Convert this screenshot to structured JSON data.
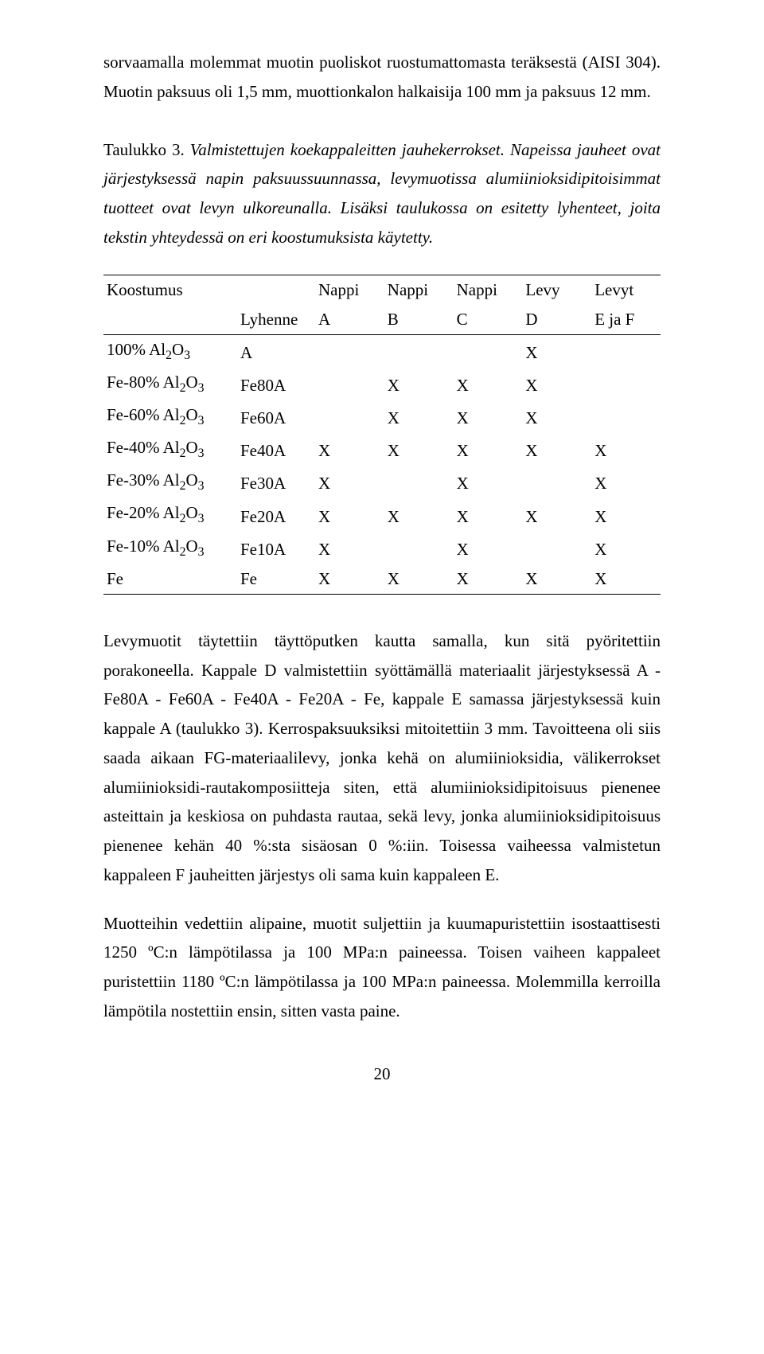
{
  "p1": "sorvaamalla molemmat muotin puoliskot ruostumattomasta teräksestä (AISI 304). Muotin paksuus oli 1,5 mm, muottionkalon halkaisija 100 mm ja paksuus 12 mm.",
  "caption_leadin": "Taulukko 3.",
  "caption_rest": " Valmistettujen koekappaleitten jauhekerrokset. Napeissa jauheet ovat järjestyksessä napin paksuussuunnassa, levymuotissa alumiinioksidipitoisimmat tuotteet ovat levyn ulkoreunalla. Lisäksi taulukossa on esitetty lyhenteet, joita tekstin yhteydessä on eri koostumuksista käytetty.",
  "tbl": {
    "h1": {
      "c0": "Koostumus",
      "c1": "",
      "c2": "Nappi",
      "c3": "Nappi",
      "c4": "Nappi",
      "c5": "Levy",
      "c6": "Levyt"
    },
    "h2": {
      "c0": "",
      "c1": "Lyhenne",
      "c2": "A",
      "c3": "B",
      "c4": "C",
      "c5": "D",
      "c6": "E ja F"
    },
    "rows": [
      {
        "c0_html": "100% Al<sub>2</sub>O<sub>3</sub>",
        "c1": "A",
        "c2": "",
        "c3": "",
        "c4": "",
        "c5": "X",
        "c6": ""
      },
      {
        "c0_html": "Fe-80% Al<sub>2</sub>O<sub>3</sub>",
        "c1": "Fe80A",
        "c2": "",
        "c3": "X",
        "c4": "X",
        "c5": "X",
        "c6": ""
      },
      {
        "c0_html": "Fe-60% Al<sub>2</sub>O<sub>3</sub>",
        "c1": "Fe60A",
        "c2": "",
        "c3": "X",
        "c4": "X",
        "c5": "X",
        "c6": ""
      },
      {
        "c0_html": "Fe-40% Al<sub>2</sub>O<sub>3</sub>",
        "c1": "Fe40A",
        "c2": "X",
        "c3": "X",
        "c4": "X",
        "c5": "X",
        "c6": "X"
      },
      {
        "c0_html": "Fe-30% Al<sub>2</sub>O<sub>3</sub>",
        "c1": "Fe30A",
        "c2": "X",
        "c3": "",
        "c4": "X",
        "c5": "",
        "c6": "X"
      },
      {
        "c0_html": "Fe-20% Al<sub>2</sub>O<sub>3</sub>",
        "c1": "Fe20A",
        "c2": "X",
        "c3": "X",
        "c4": "X",
        "c5": "X",
        "c6": "X"
      },
      {
        "c0_html": "Fe-10% Al<sub>2</sub>O<sub>3</sub>",
        "c1": "Fe10A",
        "c2": "X",
        "c3": "",
        "c4": "X",
        "c5": "",
        "c6": "X"
      },
      {
        "c0_html": "Fe",
        "c1": "Fe",
        "c2": "X",
        "c3": "X",
        "c4": "X",
        "c5": "X",
        "c6": "X"
      }
    ],
    "colstyle": {
      "c0w": "24%",
      "c1w": "14%",
      "cxw": "12.4%"
    }
  },
  "p2": "Levymuotit täytettiin täyttöputken kautta samalla, kun sitä pyöritettiin porakoneella. Kappale D valmistettiin syöttämällä materiaalit järjestyksessä A - Fe80A - Fe60A - Fe40A - Fe20A - Fe, kappale E samassa järjestyksessä kuin kappale A (taulukko 3). Kerrospaksuuksiksi mitoitettiin 3 mm. Tavoitteena oli siis saada aikaan FG-materiaalilevy, jonka kehä on alumiinioksidia, välikerrokset alumiinioksidi-rautakomposiitteja siten, että alumiinioksidipitoisuus pienenee asteittain ja keskiosa on puhdasta rautaa, sekä levy, jonka alumiinioksidipitoisuus pienenee kehän 40 %:sta sisäosan 0 %:iin. Toisessa vaiheessa valmistetun kappaleen F jauheitten järjestys oli sama kuin kappaleen E.",
  "p3": "Muotteihin vedettiin alipaine, muotit suljettiin ja kuumapuristettiin isostaattisesti 1250 ºC:n lämpötilassa ja 100 MPa:n paineessa. Toisen vaiheen kappaleet puristettiin 1180 ºC:n lämpötilassa ja 100 MPa:n paineessa. Molemmilla kerroilla lämpötila nostettiin ensin, sitten vasta paine.",
  "page_num": "20"
}
